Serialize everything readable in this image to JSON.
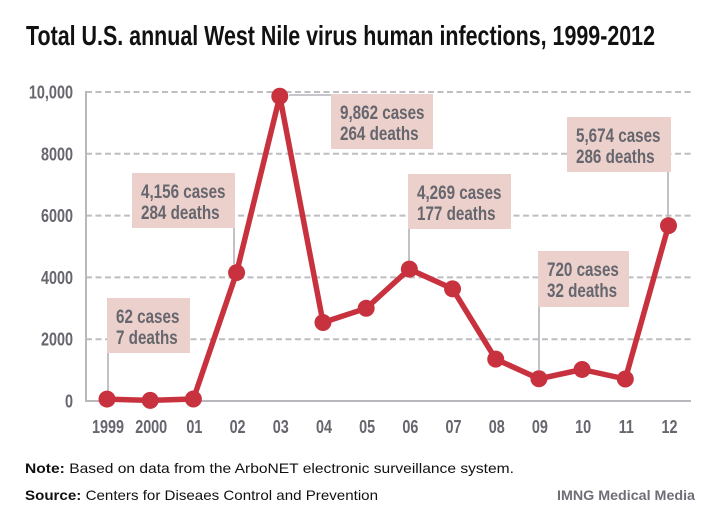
{
  "chart_data": {
    "type": "line",
    "title": "Total U.S. annual West Nile virus human infections, 1999-2012",
    "xlabel": "",
    "ylabel": "",
    "categories": [
      "1999",
      "2000",
      "01",
      "02",
      "03",
      "04",
      "05",
      "06",
      "07",
      "08",
      "09",
      "10",
      "11",
      "12"
    ],
    "years": [
      1999,
      2000,
      2001,
      2002,
      2003,
      2004,
      2005,
      2006,
      2007,
      2008,
      2009,
      2010,
      2011,
      2012
    ],
    "series": [
      {
        "name": "Human infections (cases)",
        "color": "#c8323f",
        "values": [
          62,
          21,
          66,
          4156,
          9862,
          2539,
          3000,
          4269,
          3630,
          1356,
          720,
          1021,
          712,
          5674
        ]
      }
    ],
    "ylim": [
      0,
      10000
    ],
    "yticks": [
      0,
      2000,
      4000,
      6000,
      8000,
      10000
    ],
    "ytick_labels": [
      "0",
      "2000",
      "4000",
      "6000",
      "8000",
      "10,000"
    ],
    "grid": true,
    "legend": "none",
    "annotations": [
      {
        "category": "1999",
        "cases": "62 cases",
        "deaths": "7 deaths"
      },
      {
        "category": "02",
        "cases": "4,156 cases",
        "deaths": "284 deaths"
      },
      {
        "category": "03",
        "cases": "9,862 cases",
        "deaths": "264 deaths"
      },
      {
        "category": "06",
        "cases": "4,269 cases",
        "deaths": "177 deaths"
      },
      {
        "category": "09",
        "cases": "720 cases",
        "deaths": "32 deaths"
      },
      {
        "category": "12",
        "cases": "5,674 cases",
        "deaths": "286 deaths"
      }
    ]
  },
  "footer": {
    "note_label": "Note:",
    "note_text": "Based on data from the ArboNET electronic surveillance system.",
    "source_label": "Source:",
    "source_text": "Centers for Diseaes Control and Prevention",
    "credit": "IMNG Medical Media"
  },
  "colors": {
    "series": "#c8323f",
    "annotation_box": "#ecd0cb",
    "text_gray": "#66666e",
    "grid": "#bdbdc2"
  }
}
